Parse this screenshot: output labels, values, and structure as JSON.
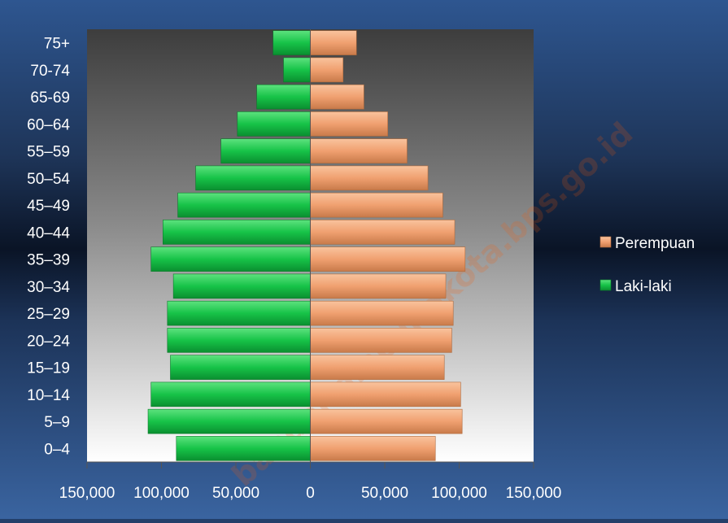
{
  "chart_data": {
    "type": "bar",
    "orientation": "horizontal",
    "layout": "population-pyramid",
    "categories": [
      "0–4",
      "5–9",
      "10–14",
      "15–19",
      "20–24",
      "25–29",
      "30–34",
      "35–39",
      "40–44",
      "45–49",
      "50–54",
      "55–59",
      "60–64",
      "65-69",
      "70-74",
      "75+"
    ],
    "series": [
      {
        "name": "Perempuan",
        "side": "right",
        "color": "#f0a070",
        "values": [
          84000,
          102000,
          101000,
          90000,
          95000,
          96000,
          91000,
          104000,
          97000,
          89000,
          79000,
          65000,
          52000,
          36000,
          22000,
          31000
        ]
      },
      {
        "name": "Laki-laki",
        "side": "left",
        "color": "#1cc84e",
        "values": [
          90000,
          109000,
          107000,
          94000,
          96000,
          96000,
          92000,
          107000,
          99000,
          89000,
          77000,
          60000,
          49000,
          36000,
          18000,
          25000
        ]
      }
    ],
    "xlim": [
      -150000,
      150000
    ],
    "x_ticks": [
      {
        "value": -150000,
        "label": "150,000"
      },
      {
        "value": -100000,
        "label": "100,000"
      },
      {
        "value": -50000,
        "label": "50,000"
      },
      {
        "value": 0,
        "label": "0"
      },
      {
        "value": 50000,
        "label": "50,000"
      },
      {
        "value": 100000,
        "label": "100,000"
      },
      {
        "value": 150000,
        "label": "150,000"
      }
    ],
    "legend": {
      "position": "right",
      "entries": [
        "Perempuan",
        "Laki-laki"
      ]
    },
    "grid": false,
    "title": "",
    "xlabel": "",
    "ylabel": ""
  },
  "watermark": "bandarlampungkota.bps.go.id"
}
